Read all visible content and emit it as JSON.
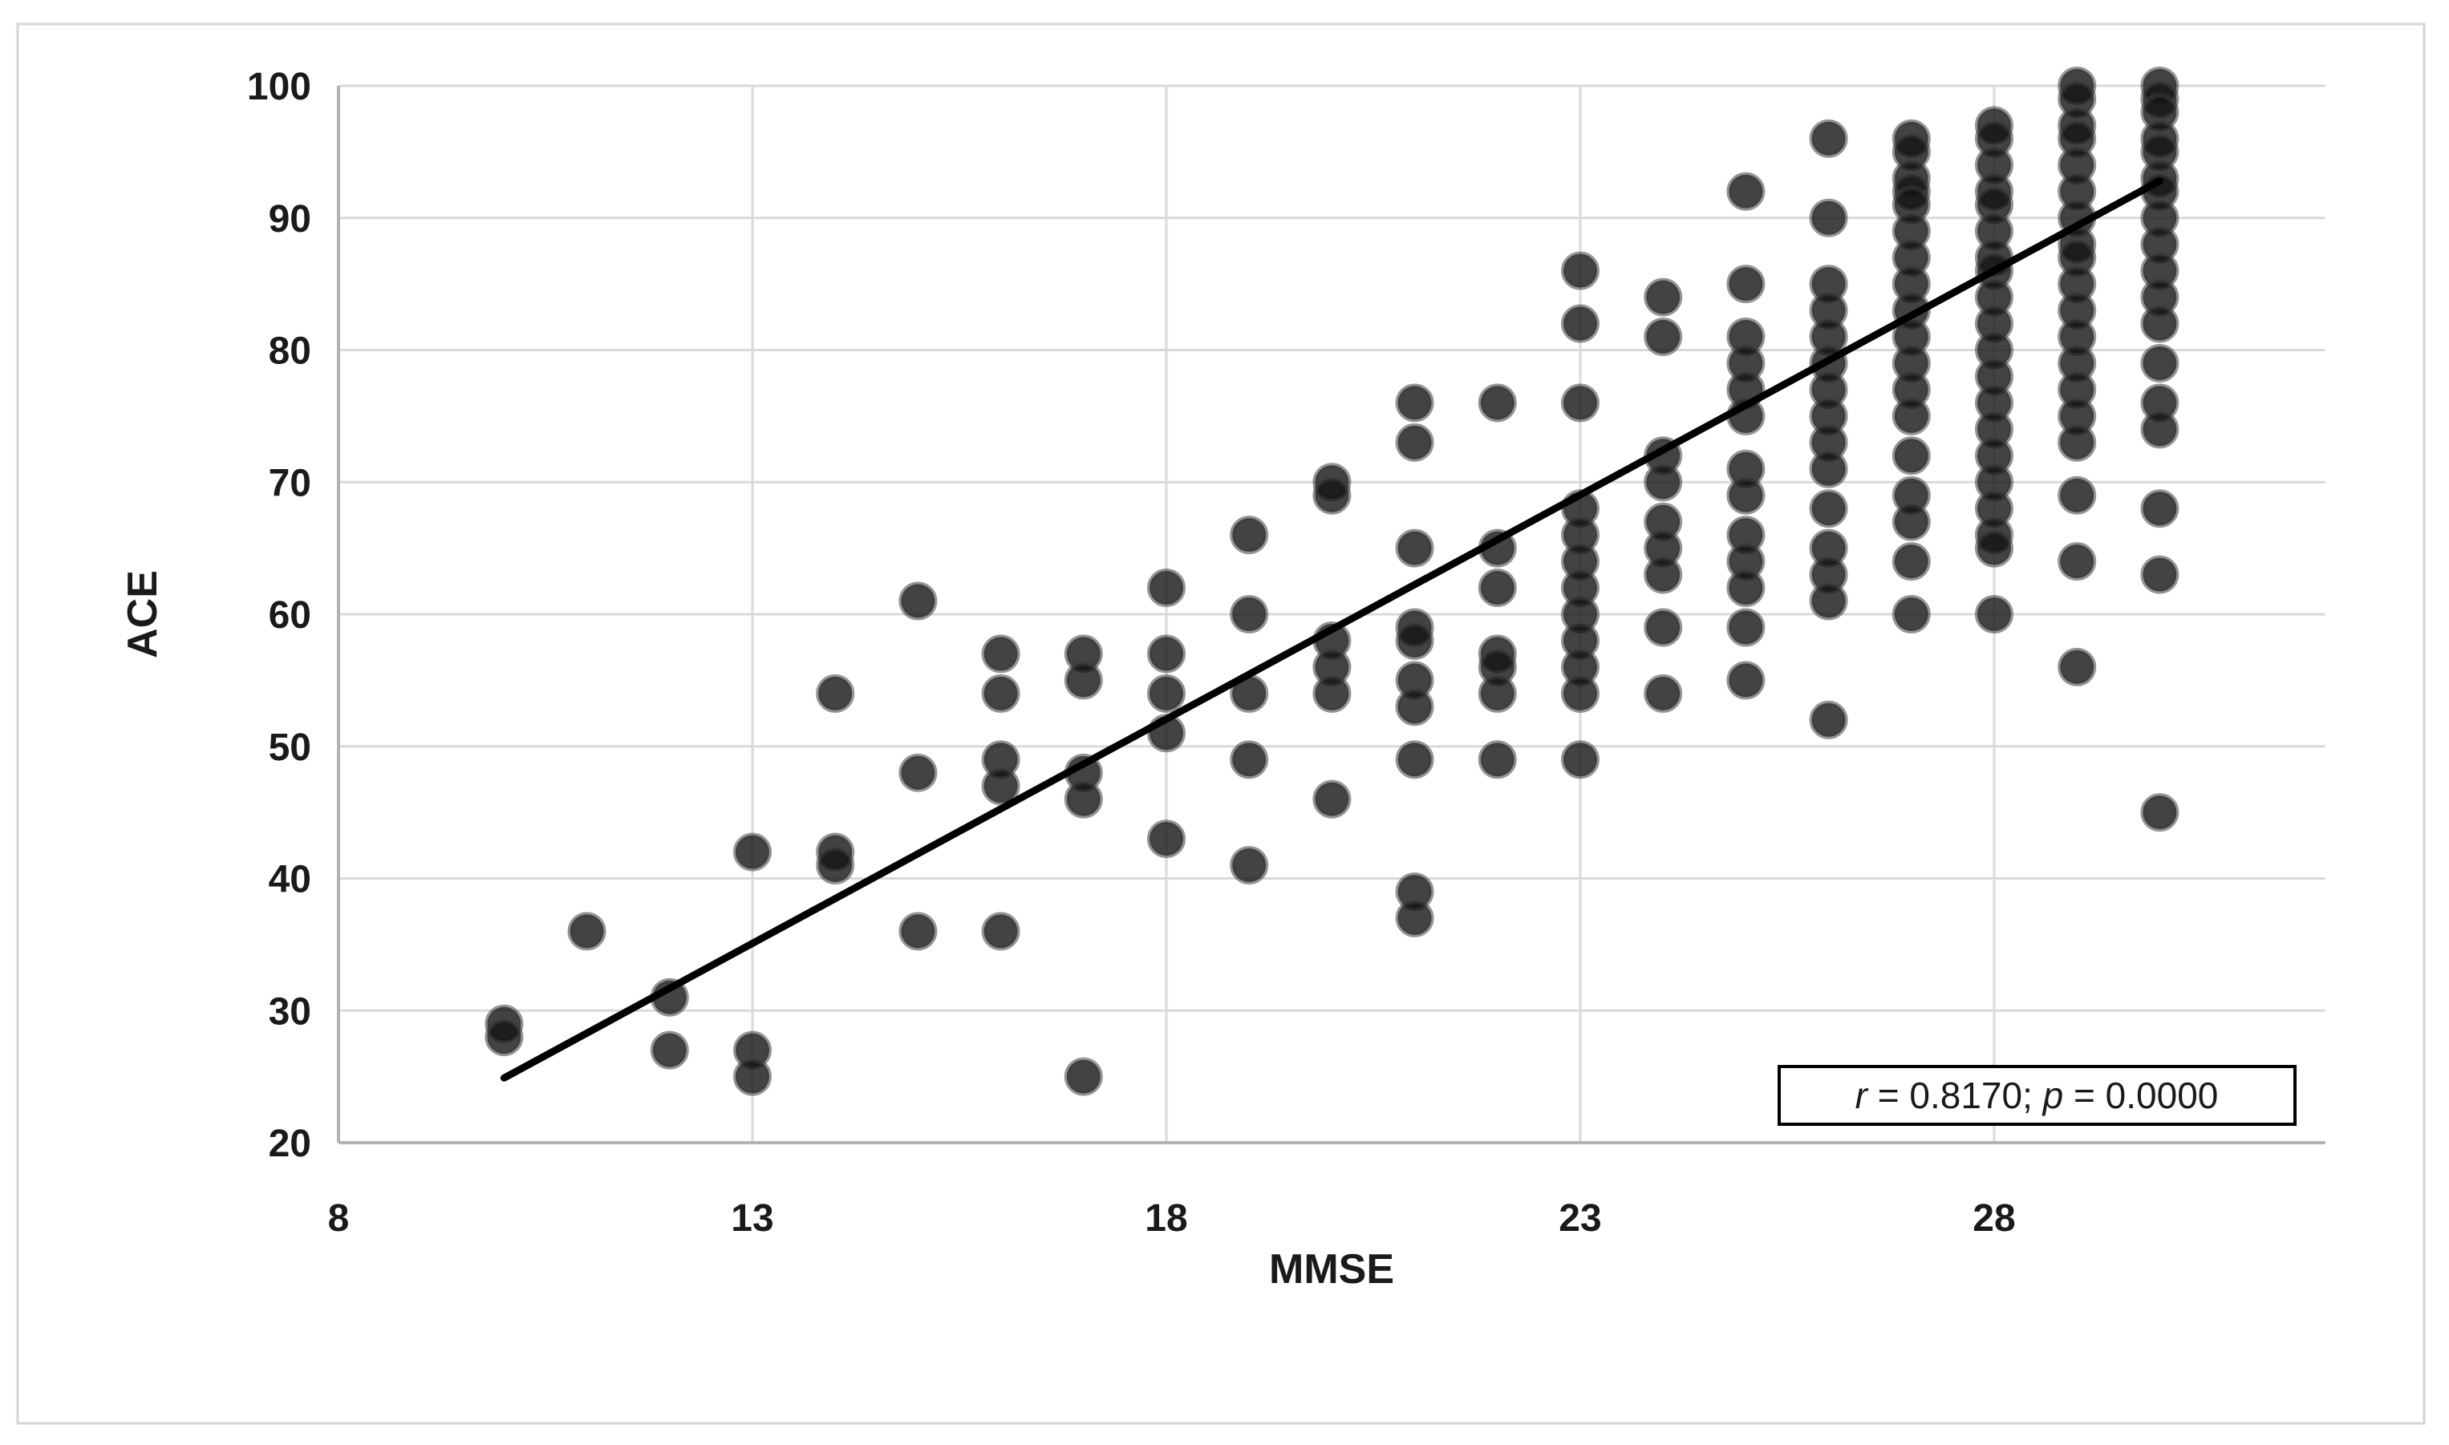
{
  "figure": {
    "background": "#ffffff",
    "border_color": "#d4d4d4",
    "grid_color": "#d9d9d9",
    "axis_color": "#b3b3b3",
    "marker_color": "#141414",
    "trend_color": "#000000"
  },
  "chart_data": {
    "type": "scatter",
    "title": "",
    "xlabel": "MMSE",
    "ylabel": "ACE",
    "xlim": [
      8,
      32
    ],
    "ylim": [
      20,
      100
    ],
    "x_ticks": [
      8,
      13,
      18,
      23,
      28
    ],
    "y_ticks": [
      20,
      30,
      40,
      50,
      60,
      70,
      80,
      90,
      100
    ],
    "grid": true,
    "legend": "none",
    "points": [
      [
        10,
        29
      ],
      [
        10,
        28
      ],
      [
        11,
        36
      ],
      [
        12,
        31
      ],
      [
        12,
        27
      ],
      [
        13,
        42
      ],
      [
        13,
        27
      ],
      [
        13,
        25
      ],
      [
        14,
        54
      ],
      [
        14,
        42
      ],
      [
        14,
        41
      ],
      [
        15,
        61
      ],
      [
        15,
        48
      ],
      [
        15,
        36
      ],
      [
        16,
        57
      ],
      [
        16,
        54
      ],
      [
        16,
        49
      ],
      [
        16,
        47
      ],
      [
        16,
        36
      ],
      [
        17,
        57
      ],
      [
        17,
        55
      ],
      [
        17,
        48
      ],
      [
        17,
        46
      ],
      [
        17,
        25
      ],
      [
        18,
        62
      ],
      [
        18,
        57
      ],
      [
        18,
        54
      ],
      [
        18,
        51
      ],
      [
        18,
        43
      ],
      [
        19,
        66
      ],
      [
        19,
        60
      ],
      [
        19,
        54
      ],
      [
        19,
        49
      ],
      [
        19,
        41
      ],
      [
        20,
        70
      ],
      [
        20,
        69
      ],
      [
        20,
        58
      ],
      [
        20,
        56
      ],
      [
        20,
        54
      ],
      [
        20,
        46
      ],
      [
        21,
        76
      ],
      [
        21,
        73
      ],
      [
        21,
        65
      ],
      [
        21,
        59
      ],
      [
        21,
        58
      ],
      [
        21,
        55
      ],
      [
        21,
        53
      ],
      [
        21,
        49
      ],
      [
        21,
        39
      ],
      [
        21,
        37
      ],
      [
        22,
        76
      ],
      [
        22,
        65
      ],
      [
        22,
        62
      ],
      [
        22,
        57
      ],
      [
        22,
        56
      ],
      [
        22,
        54
      ],
      [
        22,
        49
      ],
      [
        23,
        86
      ],
      [
        23,
        82
      ],
      [
        23,
        76
      ],
      [
        23,
        68
      ],
      [
        23,
        66
      ],
      [
        23,
        64
      ],
      [
        23,
        62
      ],
      [
        23,
        60
      ],
      [
        23,
        58
      ],
      [
        23,
        56
      ],
      [
        23,
        54
      ],
      [
        23,
        49
      ],
      [
        24,
        84
      ],
      [
        24,
        81
      ],
      [
        24,
        72
      ],
      [
        24,
        70
      ],
      [
        24,
        67
      ],
      [
        24,
        65
      ],
      [
        24,
        63
      ],
      [
        24,
        59
      ],
      [
        24,
        54
      ],
      [
        25,
        92
      ],
      [
        25,
        85
      ],
      [
        25,
        81
      ],
      [
        25,
        79
      ],
      [
        25,
        77
      ],
      [
        25,
        75
      ],
      [
        25,
        71
      ],
      [
        25,
        69
      ],
      [
        25,
        66
      ],
      [
        25,
        64
      ],
      [
        25,
        62
      ],
      [
        25,
        59
      ],
      [
        25,
        55
      ],
      [
        26,
        96
      ],
      [
        26,
        90
      ],
      [
        26,
        85
      ],
      [
        26,
        83
      ],
      [
        26,
        81
      ],
      [
        26,
        79
      ],
      [
        26,
        77
      ],
      [
        26,
        75
      ],
      [
        26,
        73
      ],
      [
        26,
        71
      ],
      [
        26,
        68
      ],
      [
        26,
        65
      ],
      [
        26,
        63
      ],
      [
        26,
        61
      ],
      [
        26,
        52
      ],
      [
        27,
        96
      ],
      [
        27,
        95
      ],
      [
        27,
        93
      ],
      [
        27,
        92
      ],
      [
        27,
        91
      ],
      [
        27,
        89
      ],
      [
        27,
        87
      ],
      [
        27,
        85
      ],
      [
        27,
        83
      ],
      [
        27,
        81
      ],
      [
        27,
        79
      ],
      [
        27,
        77
      ],
      [
        27,
        75
      ],
      [
        27,
        72
      ],
      [
        27,
        69
      ],
      [
        27,
        67
      ],
      [
        27,
        64
      ],
      [
        27,
        60
      ],
      [
        28,
        97
      ],
      [
        28,
        96
      ],
      [
        28,
        94
      ],
      [
        28,
        92
      ],
      [
        28,
        91
      ],
      [
        28,
        89
      ],
      [
        28,
        87
      ],
      [
        28,
        86
      ],
      [
        28,
        84
      ],
      [
        28,
        82
      ],
      [
        28,
        80
      ],
      [
        28,
        78
      ],
      [
        28,
        76
      ],
      [
        28,
        74
      ],
      [
        28,
        72
      ],
      [
        28,
        70
      ],
      [
        28,
        68
      ],
      [
        28,
        66
      ],
      [
        28,
        65
      ],
      [
        28,
        60
      ],
      [
        29,
        100
      ],
      [
        29,
        99
      ],
      [
        29,
        97
      ],
      [
        29,
        96
      ],
      [
        29,
        94
      ],
      [
        29,
        92
      ],
      [
        29,
        90
      ],
      [
        29,
        88
      ],
      [
        29,
        87
      ],
      [
        29,
        85
      ],
      [
        29,
        83
      ],
      [
        29,
        81
      ],
      [
        29,
        79
      ],
      [
        29,
        77
      ],
      [
        29,
        75
      ],
      [
        29,
        73
      ],
      [
        29,
        69
      ],
      [
        29,
        64
      ],
      [
        29,
        56
      ],
      [
        30,
        100
      ],
      [
        30,
        99
      ],
      [
        30,
        98
      ],
      [
        30,
        96
      ],
      [
        30,
        95
      ],
      [
        30,
        93
      ],
      [
        30,
        92
      ],
      [
        30,
        90
      ],
      [
        30,
        88
      ],
      [
        30,
        86
      ],
      [
        30,
        84
      ],
      [
        30,
        82
      ],
      [
        30,
        79
      ],
      [
        30,
        76
      ],
      [
        30,
        74
      ],
      [
        30,
        68
      ],
      [
        30,
        63
      ],
      [
        30,
        45
      ]
    ],
    "trendline": {
      "x1": 10,
      "y1": 24.9,
      "x2": 30,
      "y2": 92.8
    },
    "annotation": {
      "full_text": "r = 0.8170; p = 0.0000",
      "parts": [
        {
          "text": "r",
          "italic": true
        },
        {
          "text": " = 0.8170; ",
          "italic": false
        },
        {
          "text": "p",
          "italic": true
        },
        {
          "text": " = 0.0000",
          "italic": false
        }
      ]
    }
  }
}
